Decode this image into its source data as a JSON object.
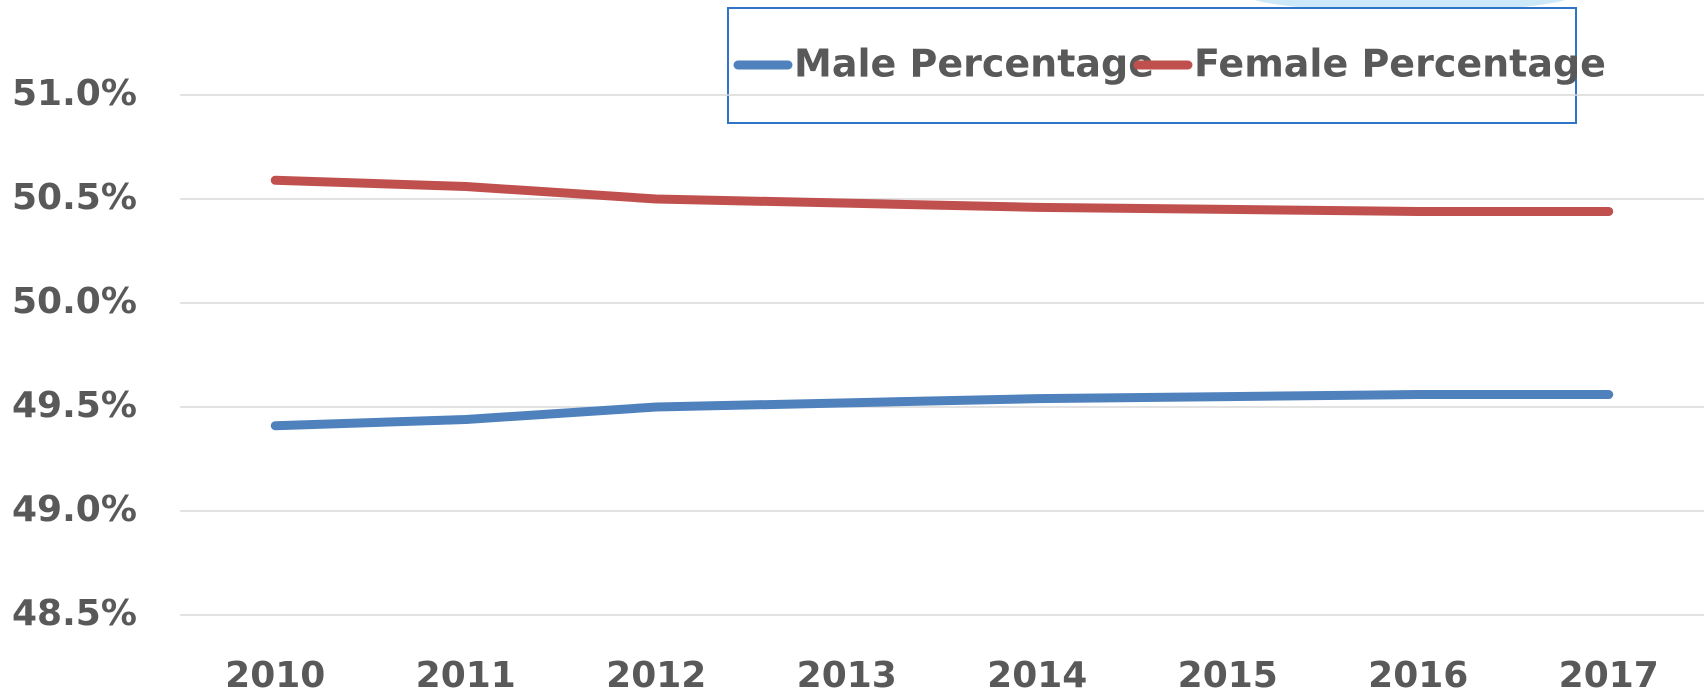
{
  "chart_data": {
    "type": "line",
    "categories": [
      "2010",
      "2011",
      "2012",
      "2013",
      "2014",
      "2015",
      "2016",
      "2017"
    ],
    "series": [
      {
        "name": "Male Percentage",
        "color": "#4f81bd",
        "values": [
          49.41,
          49.44,
          49.5,
          49.52,
          49.54,
          49.55,
          49.56,
          49.56
        ]
      },
      {
        "name": "Female Percentage",
        "color": "#c0504d",
        "values": [
          50.59,
          50.56,
          50.5,
          50.48,
          50.46,
          50.45,
          50.44,
          50.44
        ]
      }
    ],
    "ylim": [
      48.5,
      51.0
    ],
    "yticks": [
      {
        "value": 48.5,
        "label": "48.5%"
      },
      {
        "value": 49.0,
        "label": "49.0%"
      },
      {
        "value": 49.5,
        "label": "49.5%"
      },
      {
        "value": 50.0,
        "label": "50.0%"
      },
      {
        "value": 50.5,
        "label": "50.5%"
      },
      {
        "value": 51.0,
        "label": "51.0%"
      }
    ],
    "grid": true
  }
}
